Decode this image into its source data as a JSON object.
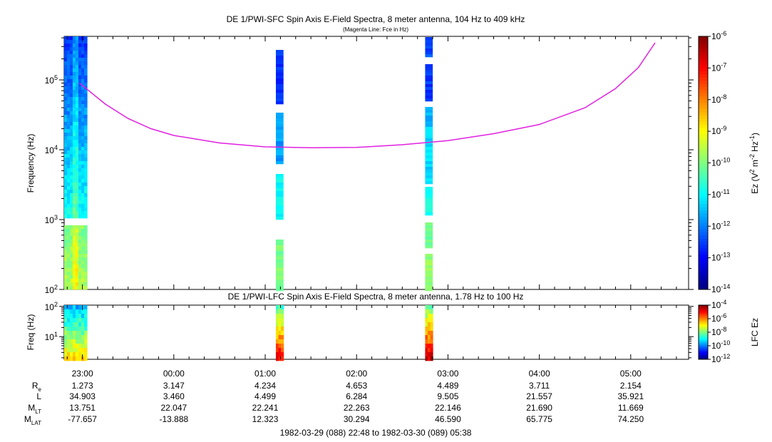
{
  "chart_data": [
    {
      "type": "heatmap",
      "title": "DE 1/PWI-SFC  Spin Axis E-Field Spectra, 8 meter antenna, 104 Hz to 409 kHz",
      "subtitle": "(Magenta Line: Fce in Hz)",
      "ylabel": "Frequency (Hz)",
      "yscale": "log",
      "ylim": [
        100,
        420000
      ],
      "y_ticks": [
        {
          "value": 100,
          "mant": "10",
          "exp": "2"
        },
        {
          "value": 1000,
          "mant": "10",
          "exp": "3"
        },
        {
          "value": 10000,
          "mant": "10",
          "exp": "4"
        },
        {
          "value": 100000,
          "mant": "10",
          "exp": "5"
        }
      ],
      "colorbar": {
        "label_parts": [
          "Ez (V",
          "2",
          " m",
          "-2",
          " Hz",
          "-1",
          ")"
        ],
        "scale": "log",
        "range": [
          1e-14,
          1e-06
        ],
        "ticks": [
          {
            "value": 1e-06,
            "mant": "10",
            "exp": "-6"
          },
          {
            "value": 1e-07,
            "mant": "10",
            "exp": "-7"
          },
          {
            "value": 1e-08,
            "mant": "10",
            "exp": "-8"
          },
          {
            "value": 1e-09,
            "mant": "10",
            "exp": "-9"
          },
          {
            "value": 1e-10,
            "mant": "10",
            "exp": "-10"
          },
          {
            "value": 1e-11,
            "mant": "10",
            "exp": "-11"
          },
          {
            "value": 1e-12,
            "mant": "10",
            "exp": "-12"
          },
          {
            "value": 1e-13,
            "mant": "10",
            "exp": "-13"
          },
          {
            "value": 1e-14,
            "mant": "10",
            "exp": "-14"
          }
        ]
      },
      "fce_line": {
        "color": "#e020e0",
        "points": [
          [
            "22:58",
            90000
          ],
          [
            "23:15",
            45000
          ],
          [
            "23:30",
            28000
          ],
          [
            "23:45",
            20000
          ],
          [
            "00:00",
            16000
          ],
          [
            "00:30",
            12500
          ],
          [
            "01:00",
            11000
          ],
          [
            "01:30",
            10700
          ],
          [
            "02:00",
            10800
          ],
          [
            "02:30",
            11800
          ],
          [
            "03:00",
            13500
          ],
          [
            "03:30",
            17000
          ],
          [
            "04:00",
            23000
          ],
          [
            "04:30",
            40000
          ],
          [
            "04:50",
            75000
          ],
          [
            "05:05",
            150000
          ],
          [
            "05:16",
            340000
          ]
        ]
      },
      "data_columns": [
        {
          "start": "22:48",
          "end": "23:03"
        },
        {
          "start": "01:07",
          "end": "01:12"
        },
        {
          "start": "02:45",
          "end": "02:50"
        }
      ]
    },
    {
      "type": "heatmap",
      "title": "DE 1/PWI-LFC  Spin Axis E-Field Spectra, 8 meter antenna, 1.78 Hz to 100 Hz",
      "ylabel": "Freq (Hz)",
      "yscale": "log",
      "ylim": [
        1.78,
        110
      ],
      "y_ticks": [
        {
          "value": 100,
          "mant": "10",
          "exp": "2"
        },
        {
          "value": 10,
          "mant": "10",
          "exp": "1"
        }
      ],
      "colorbar": {
        "label": "LFC Ez",
        "scale": "log",
        "range": [
          1e-12,
          0.0001
        ],
        "ticks": [
          {
            "value": 0.0001,
            "mant": "10",
            "exp": "-4"
          },
          {
            "value": 1e-06,
            "mant": "10",
            "exp": "-6"
          },
          {
            "value": 1e-08,
            "mant": "10",
            "exp": "-8"
          },
          {
            "value": 1e-10,
            "mant": "10",
            "exp": "-10"
          },
          {
            "value": 1e-12,
            "mant": "10",
            "exp": "-12"
          }
        ]
      }
    }
  ],
  "time_axis": {
    "range": [
      "22:48",
      "05:38"
    ],
    "ticks": [
      "23:00",
      "00:00",
      "01:00",
      "02:00",
      "03:00",
      "04:00",
      "05:00"
    ]
  },
  "ephemeris": {
    "rows": [
      {
        "label": "R",
        "sub": "e",
        "values": [
          "1.273",
          "3.147",
          "4.234",
          "4.653",
          "4.489",
          "3.711",
          "2.154"
        ]
      },
      {
        "label": "L",
        "sub": "",
        "values": [
          "34.903",
          "3.460",
          "4.499",
          "6.284",
          "9.505",
          "21.557",
          "35.921"
        ]
      },
      {
        "label": "M",
        "sub": "LT",
        "values": [
          "13.751",
          "22.047",
          "22.241",
          "22.263",
          "22.146",
          "21.690",
          "11.669"
        ]
      },
      {
        "label": "M",
        "sub": "LAT",
        "values": [
          "-77.657",
          "-13.888",
          "12.323",
          "30.294",
          "46.590",
          "65.775",
          "74.250"
        ]
      }
    ]
  },
  "footer": "1982-03-29 (088) 22:48 to 1982-03-30 (089) 05:38"
}
